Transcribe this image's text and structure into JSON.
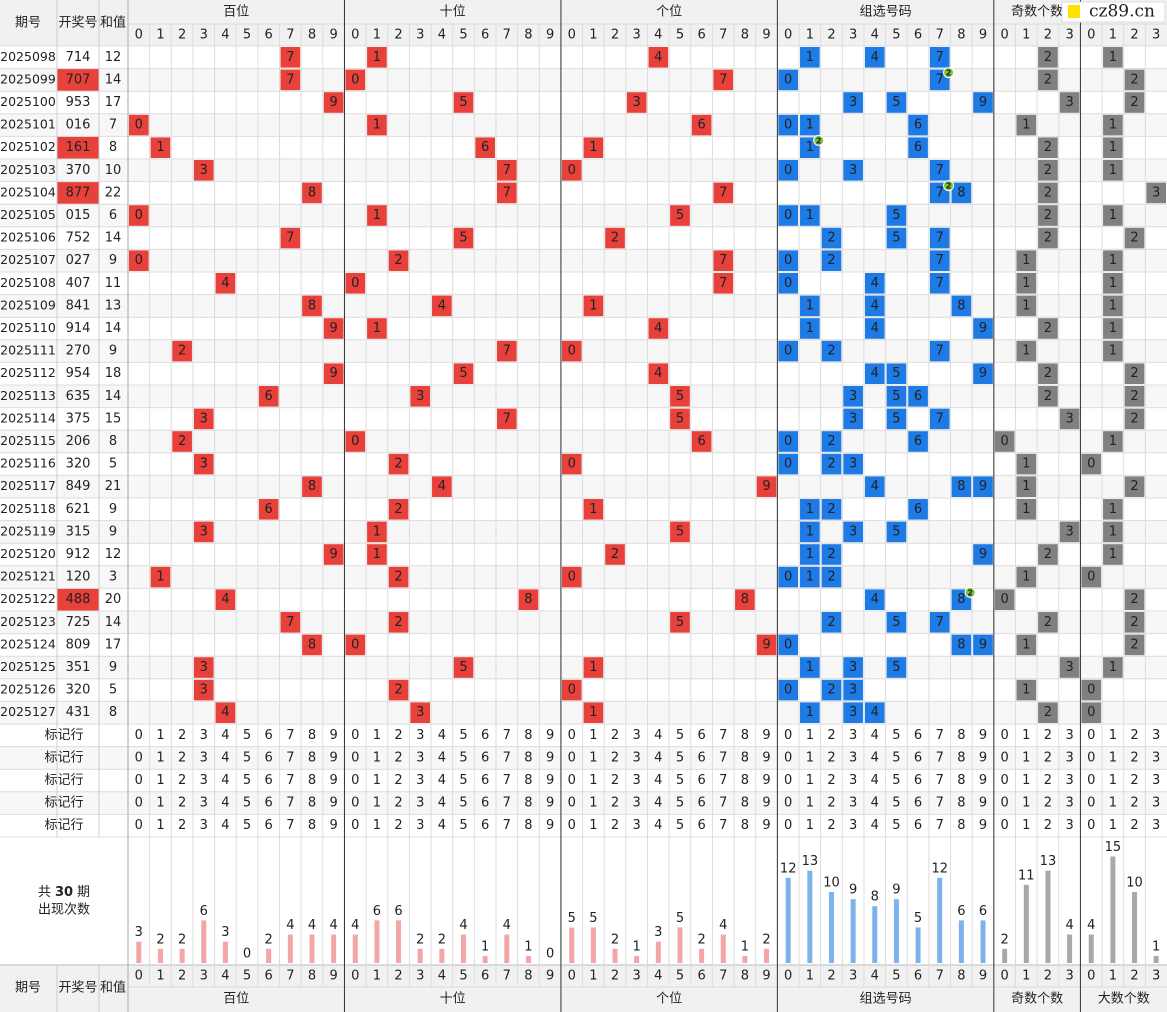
{
  "header": {
    "issue": "期号",
    "number": "开奖号",
    "sum": "和值"
  },
  "columns": [
    {
      "name": "百位",
      "digits": [
        0,
        1,
        2,
        3,
        4,
        5,
        6,
        7,
        8,
        9
      ]
    },
    {
      "name": "十位",
      "digits": [
        0,
        1,
        2,
        3,
        4,
        5,
        6,
        7,
        8,
        9
      ]
    },
    {
      "name": "个位",
      "digits": [
        0,
        1,
        2,
        3,
        4,
        5,
        6,
        7,
        8,
        9
      ]
    },
    {
      "name": "组选号码",
      "digits": [
        0,
        1,
        2,
        3,
        4,
        5,
        6,
        7,
        8,
        9
      ]
    },
    {
      "name": "奇数个数",
      "digits": [
        0,
        1,
        2,
        3
      ]
    },
    {
      "name": "大数个数",
      "digits": [
        0,
        1,
        2,
        3
      ]
    }
  ],
  "watermark": "cz89.cn",
  "rows": [
    {
      "issue": "2025098",
      "number": "714",
      "sum": 12,
      "bai": 7,
      "shi": 1,
      "ge": 4,
      "zuxuan": [
        1,
        4,
        7
      ],
      "odd": 2,
      "big": 1
    },
    {
      "issue": "2025099",
      "number": "707",
      "sum": 14,
      "bai": 7,
      "shi": 0,
      "ge": 7,
      "zuxuan": [
        0,
        7
      ],
      "repeat": 2,
      "odd": 2,
      "big": 2
    },
    {
      "issue": "2025100",
      "number": "953",
      "sum": 17,
      "bai": 9,
      "shi": 5,
      "ge": 3,
      "zuxuan": [
        3,
        5,
        9
      ],
      "odd": 3,
      "big": 2
    },
    {
      "issue": "2025101",
      "number": "016",
      "sum": 7,
      "bai": 0,
      "shi": 1,
      "ge": 6,
      "zuxuan": [
        0,
        1,
        6
      ],
      "odd": 1,
      "big": 1
    },
    {
      "issue": "2025102",
      "number": "161",
      "sum": 8,
      "bai": 1,
      "shi": 6,
      "ge": 1,
      "zuxuan": [
        1,
        6
      ],
      "repeat": 2,
      "odd": 2,
      "big": 1
    },
    {
      "issue": "2025103",
      "number": "370",
      "sum": 10,
      "bai": 3,
      "shi": 7,
      "ge": 0,
      "zuxuan": [
        0,
        3,
        7
      ],
      "odd": 2,
      "big": 1
    },
    {
      "issue": "2025104",
      "number": "877",
      "sum": 22,
      "bai": 8,
      "shi": 7,
      "ge": 7,
      "zuxuan": [
        7,
        8
      ],
      "repeat": 2,
      "odd": 2,
      "big": 3
    },
    {
      "issue": "2025105",
      "number": "015",
      "sum": 6,
      "bai": 0,
      "shi": 1,
      "ge": 5,
      "zuxuan": [
        0,
        1,
        5
      ],
      "odd": 2,
      "big": 1
    },
    {
      "issue": "2025106",
      "number": "752",
      "sum": 14,
      "bai": 7,
      "shi": 5,
      "ge": 2,
      "zuxuan": [
        2,
        5,
        7
      ],
      "odd": 2,
      "big": 2
    },
    {
      "issue": "2025107",
      "number": "027",
      "sum": 9,
      "bai": 0,
      "shi": 2,
      "ge": 7,
      "zuxuan": [
        0,
        2,
        7
      ],
      "odd": 1,
      "big": 1
    },
    {
      "issue": "2025108",
      "number": "407",
      "sum": 11,
      "bai": 4,
      "shi": 0,
      "ge": 7,
      "zuxuan": [
        0,
        4,
        7
      ],
      "odd": 1,
      "big": 1
    },
    {
      "issue": "2025109",
      "number": "841",
      "sum": 13,
      "bai": 8,
      "shi": 4,
      "ge": 1,
      "zuxuan": [
        1,
        4,
        8
      ],
      "odd": 1,
      "big": 1
    },
    {
      "issue": "2025110",
      "number": "914",
      "sum": 14,
      "bai": 9,
      "shi": 1,
      "ge": 4,
      "zuxuan": [
        1,
        4,
        9
      ],
      "odd": 2,
      "big": 1
    },
    {
      "issue": "2025111",
      "number": "270",
      "sum": 9,
      "bai": 2,
      "shi": 7,
      "ge": 0,
      "zuxuan": [
        0,
        2,
        7
      ],
      "odd": 1,
      "big": 1
    },
    {
      "issue": "2025112",
      "number": "954",
      "sum": 18,
      "bai": 9,
      "shi": 5,
      "ge": 4,
      "zuxuan": [
        4,
        5,
        9
      ],
      "odd": 2,
      "big": 2
    },
    {
      "issue": "2025113",
      "number": "635",
      "sum": 14,
      "bai": 6,
      "shi": 3,
      "ge": 5,
      "zuxuan": [
        3,
        5,
        6
      ],
      "odd": 2,
      "big": 2
    },
    {
      "issue": "2025114",
      "number": "375",
      "sum": 15,
      "bai": 3,
      "shi": 7,
      "ge": 5,
      "zuxuan": [
        3,
        5,
        7
      ],
      "odd": 3,
      "big": 2
    },
    {
      "issue": "2025115",
      "number": "206",
      "sum": 8,
      "bai": 2,
      "shi": 0,
      "ge": 6,
      "zuxuan": [
        0,
        2,
        6
      ],
      "odd": 0,
      "big": 1
    },
    {
      "issue": "2025116",
      "number": "320",
      "sum": 5,
      "bai": 3,
      "shi": 2,
      "ge": 0,
      "zuxuan": [
        0,
        2,
        3
      ],
      "odd": 1,
      "big": 0
    },
    {
      "issue": "2025117",
      "number": "849",
      "sum": 21,
      "bai": 8,
      "shi": 4,
      "ge": 9,
      "zuxuan": [
        4,
        8,
        9
      ],
      "odd": 1,
      "big": 2
    },
    {
      "issue": "2025118",
      "number": "621",
      "sum": 9,
      "bai": 6,
      "shi": 2,
      "ge": 1,
      "zuxuan": [
        1,
        2,
        6
      ],
      "odd": 1,
      "big": 1
    },
    {
      "issue": "2025119",
      "number": "315",
      "sum": 9,
      "bai": 3,
      "shi": 1,
      "ge": 5,
      "zuxuan": [
        1,
        3,
        5
      ],
      "odd": 3,
      "big": 1
    },
    {
      "issue": "2025120",
      "number": "912",
      "sum": 12,
      "bai": 9,
      "shi": 1,
      "ge": 2,
      "zuxuan": [
        1,
        2,
        9
      ],
      "odd": 2,
      "big": 1
    },
    {
      "issue": "2025121",
      "number": "120",
      "sum": 3,
      "bai": 1,
      "shi": 2,
      "ge": 0,
      "zuxuan": [
        0,
        1,
        2
      ],
      "odd": 1,
      "big": 0
    },
    {
      "issue": "2025122",
      "number": "488",
      "sum": 20,
      "bai": 4,
      "shi": 8,
      "ge": 8,
      "zuxuan": [
        4,
        8
      ],
      "repeat": 2,
      "odd": 0,
      "big": 2
    },
    {
      "issue": "2025123",
      "number": "725",
      "sum": 14,
      "bai": 7,
      "shi": 2,
      "ge": 5,
      "zuxuan": [
        2,
        5,
        7
      ],
      "odd": 2,
      "big": 2
    },
    {
      "issue": "2025124",
      "number": "809",
      "sum": 17,
      "bai": 8,
      "shi": 0,
      "ge": 9,
      "zuxuan": [
        0,
        8,
        9
      ],
      "odd": 1,
      "big": 2
    },
    {
      "issue": "2025125",
      "number": "351",
      "sum": 9,
      "bai": 3,
      "shi": 5,
      "ge": 1,
      "zuxuan": [
        1,
        3,
        5
      ],
      "odd": 3,
      "big": 1
    },
    {
      "issue": "2025126",
      "number": "320",
      "sum": 5,
      "bai": 3,
      "shi": 2,
      "ge": 0,
      "zuxuan": [
        0,
        2,
        3
      ],
      "odd": 1,
      "big": 0
    },
    {
      "issue": "2025127",
      "number": "431",
      "sum": 8,
      "bai": 4,
      "shi": 3,
      "ge": 1,
      "zuxuan": [
        1,
        3,
        4
      ],
      "odd": 2,
      "big": 0
    }
  ],
  "mark_rows": [
    "标记行",
    "标记行",
    "标记行",
    "标记行",
    "标记行"
  ],
  "stats": {
    "prefix": "共",
    "periods": 30,
    "suffix": "期",
    "label": "出现次数",
    "counts": [
      [
        3,
        2,
        2,
        6,
        3,
        0,
        2,
        4,
        4,
        4
      ],
      [
        4,
        6,
        6,
        2,
        2,
        4,
        1,
        4,
        1,
        0
      ],
      [
        5,
        5,
        2,
        1,
        3,
        5,
        2,
        4,
        1,
        2
      ],
      [
        12,
        13,
        10,
        9,
        8,
        9,
        5,
        12,
        6,
        6
      ],
      [
        2,
        11,
        13,
        4
      ],
      [
        4,
        15,
        10,
        1
      ]
    ]
  }
}
